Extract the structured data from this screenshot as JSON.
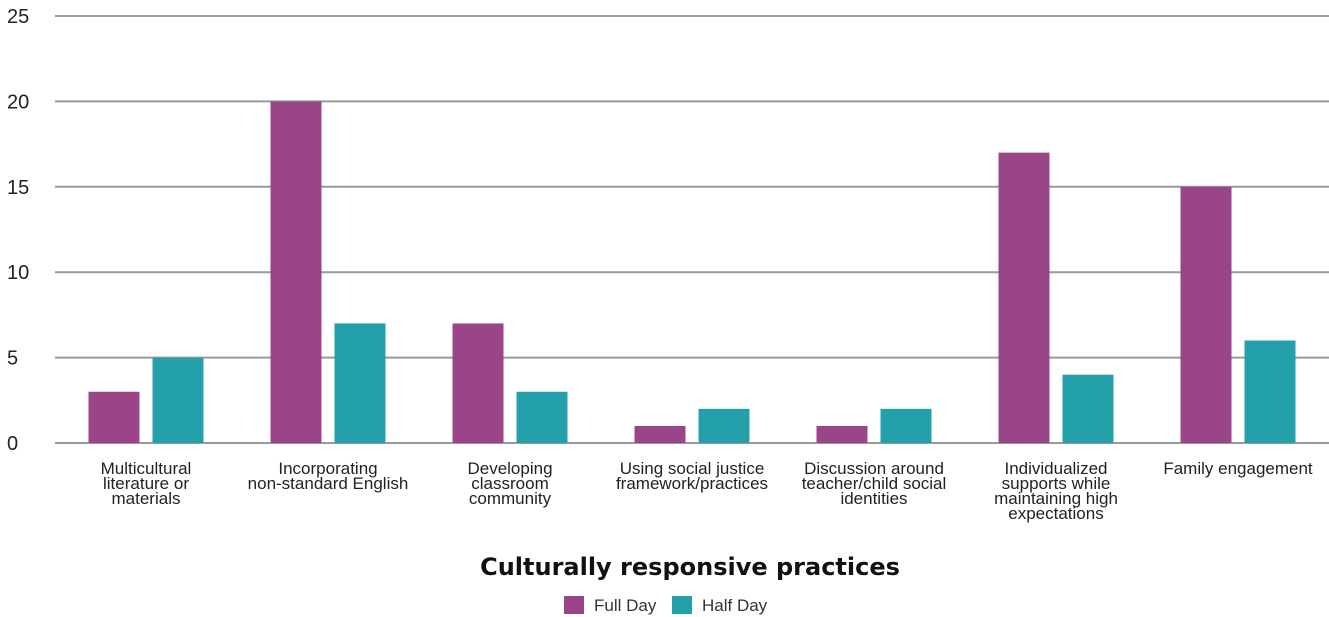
{
  "chart_data": {
    "type": "bar",
    "title": "Culturally responsive practices",
    "xlabel": "Culturally responsive practices",
    "ylabel": "",
    "ylim": [
      0,
      25
    ],
    "yticks": [
      0,
      5,
      10,
      15,
      20,
      25
    ],
    "grid": true,
    "legend_position": "bottom",
    "categories": [
      [
        "Multicultural",
        "literature or",
        "materials"
      ],
      [
        "Incorporating",
        "non-standard English"
      ],
      [
        "Developing",
        "classroom",
        "community"
      ],
      [
        "Using social justice",
        "framework/practices"
      ],
      [
        "Discussion around",
        "teacher/child social",
        "identities"
      ],
      [
        "Individualized",
        "supports while",
        "maintaining high",
        "expectations"
      ],
      [
        "Family engagement"
      ]
    ],
    "series": [
      {
        "name": "Full Day",
        "color": "#9b4589",
        "values": [
          3,
          20,
          7,
          1,
          1,
          17,
          15
        ]
      },
      {
        "name": "Half Day",
        "color": "#24a0ab",
        "values": [
          5,
          7,
          3,
          2,
          2,
          4,
          6
        ]
      }
    ]
  }
}
